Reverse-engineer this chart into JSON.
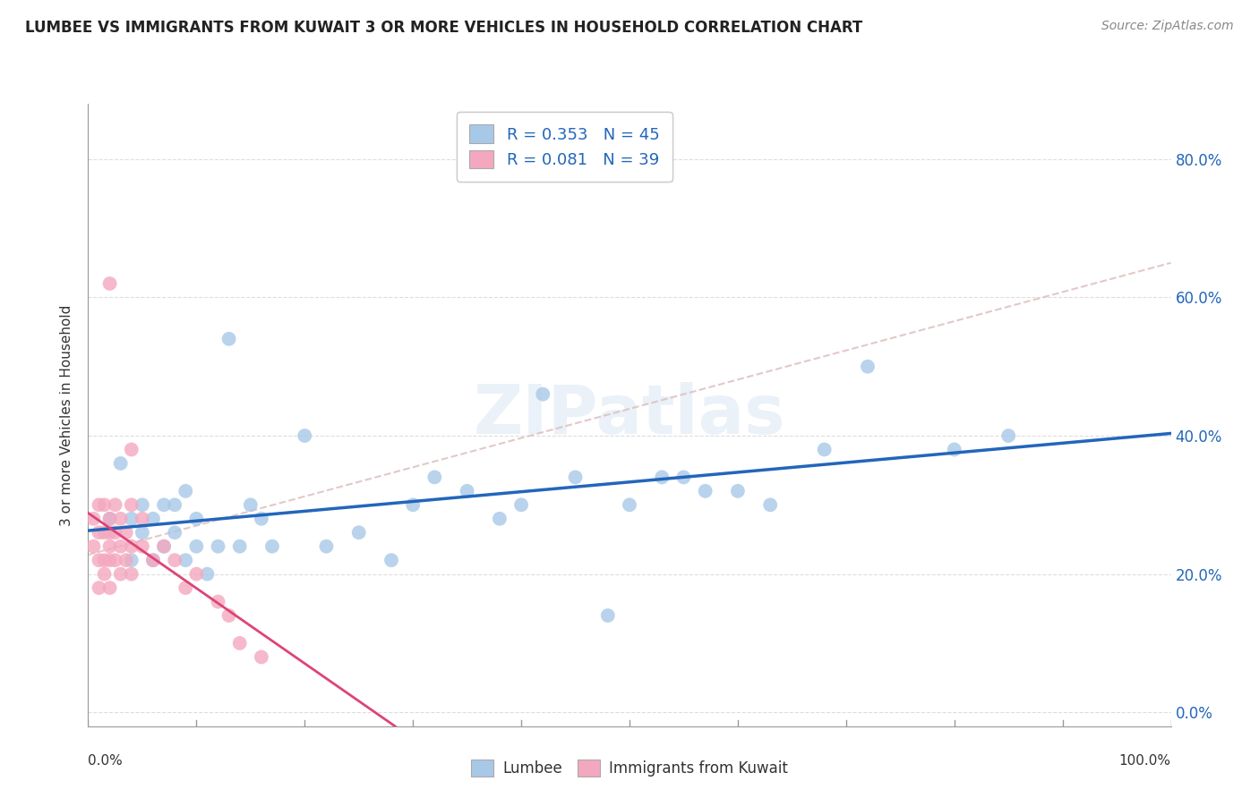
{
  "title": "LUMBEE VS IMMIGRANTS FROM KUWAIT 3 OR MORE VEHICLES IN HOUSEHOLD CORRELATION CHART",
  "source": "Source: ZipAtlas.com",
  "ylabel": "3 or more Vehicles in Household",
  "xlim": [
    0.0,
    1.0
  ],
  "ylim": [
    -0.02,
    0.88
  ],
  "yticks": [
    0.0,
    0.2,
    0.4,
    0.6,
    0.8
  ],
  "ytick_labels": [
    "0.0%",
    "20.0%",
    "40.0%",
    "60.0%",
    "80.0%"
  ],
  "xtick_labels_edge": [
    "0.0%",
    "100.0%"
  ],
  "lumbee_color": "#a8c8e8",
  "kuwait_color": "#f4a8bf",
  "lumbee_R": 0.353,
  "lumbee_N": 45,
  "kuwait_R": 0.081,
  "kuwait_N": 39,
  "lumbee_line_color": "#2266bb",
  "kuwait_line_color": "#dd4477",
  "dashed_line_color": "#ccaaaa",
  "grid_color": "#dddddd",
  "watermark": "ZIPatlas",
  "lumbee_x": [
    0.02,
    0.03,
    0.04,
    0.04,
    0.05,
    0.05,
    0.06,
    0.06,
    0.07,
    0.07,
    0.08,
    0.08,
    0.09,
    0.09,
    0.1,
    0.1,
    0.11,
    0.12,
    0.13,
    0.14,
    0.15,
    0.16,
    0.17,
    0.2,
    0.22,
    0.25,
    0.28,
    0.3,
    0.32,
    0.35,
    0.38,
    0.4,
    0.42,
    0.45,
    0.48,
    0.5,
    0.53,
    0.55,
    0.57,
    0.6,
    0.63,
    0.68,
    0.72,
    0.8,
    0.85
  ],
  "lumbee_y": [
    0.28,
    0.36,
    0.28,
    0.22,
    0.3,
    0.26,
    0.28,
    0.22,
    0.3,
    0.24,
    0.26,
    0.3,
    0.32,
    0.22,
    0.24,
    0.28,
    0.2,
    0.24,
    0.54,
    0.24,
    0.3,
    0.28,
    0.24,
    0.4,
    0.24,
    0.26,
    0.22,
    0.3,
    0.34,
    0.32,
    0.28,
    0.3,
    0.46,
    0.34,
    0.14,
    0.3,
    0.34,
    0.34,
    0.32,
    0.32,
    0.3,
    0.38,
    0.5,
    0.38,
    0.4
  ],
  "kuwait_x": [
    0.005,
    0.005,
    0.01,
    0.01,
    0.01,
    0.01,
    0.015,
    0.015,
    0.015,
    0.015,
    0.02,
    0.02,
    0.02,
    0.02,
    0.02,
    0.02,
    0.025,
    0.025,
    0.025,
    0.03,
    0.03,
    0.03,
    0.035,
    0.035,
    0.04,
    0.04,
    0.04,
    0.04,
    0.05,
    0.05,
    0.06,
    0.07,
    0.08,
    0.09,
    0.1,
    0.12,
    0.13,
    0.14,
    0.16
  ],
  "kuwait_y": [
    0.24,
    0.28,
    0.26,
    0.3,
    0.22,
    0.18,
    0.3,
    0.26,
    0.22,
    0.2,
    0.62,
    0.28,
    0.26,
    0.24,
    0.22,
    0.18,
    0.3,
    0.26,
    0.22,
    0.28,
    0.24,
    0.2,
    0.26,
    0.22,
    0.38,
    0.3,
    0.24,
    0.2,
    0.28,
    0.24,
    0.22,
    0.24,
    0.22,
    0.18,
    0.2,
    0.16,
    0.14,
    0.1,
    0.08
  ]
}
